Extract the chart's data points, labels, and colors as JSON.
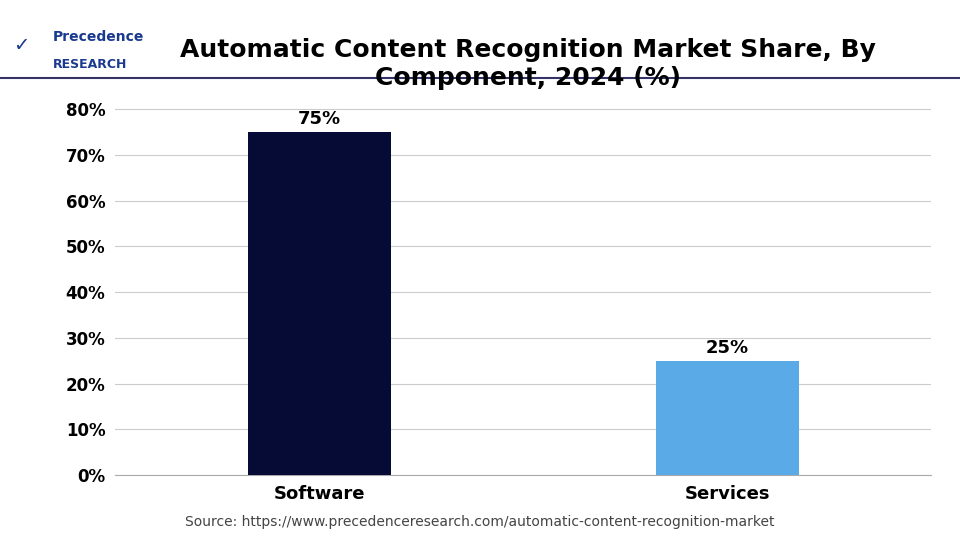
{
  "title": "Automatic Content Recognition Market Share, By\nComponent, 2024 (%)",
  "categories": [
    "Software",
    "Services"
  ],
  "values": [
    75,
    25
  ],
  "bar_colors": [
    "#060B35",
    "#5BAAE8"
  ],
  "bar_labels": [
    "75%",
    "25%"
  ],
  "yticks": [
    0,
    10,
    20,
    30,
    40,
    50,
    60,
    70,
    80
  ],
  "ytick_labels": [
    "0%",
    "10%",
    "20%",
    "30%",
    "40%",
    "50%",
    "60%",
    "70%",
    "80%"
  ],
  "ylim": [
    0,
    85
  ],
  "source_text": "Source: https://www.precedenceresearch.com/automatic-content-recognition-market",
  "title_fontsize": 18,
  "label_fontsize": 13,
  "tick_fontsize": 12,
  "source_fontsize": 10,
  "background_color": "#ffffff",
  "grid_color": "#cccccc",
  "title_color": "#000000",
  "bar_label_color": "#000000",
  "logo_text_precedence": "Precedence",
  "logo_text_research": "RESEARCH",
  "logo_color": "#1a3a8f",
  "separator_color": "#333366"
}
